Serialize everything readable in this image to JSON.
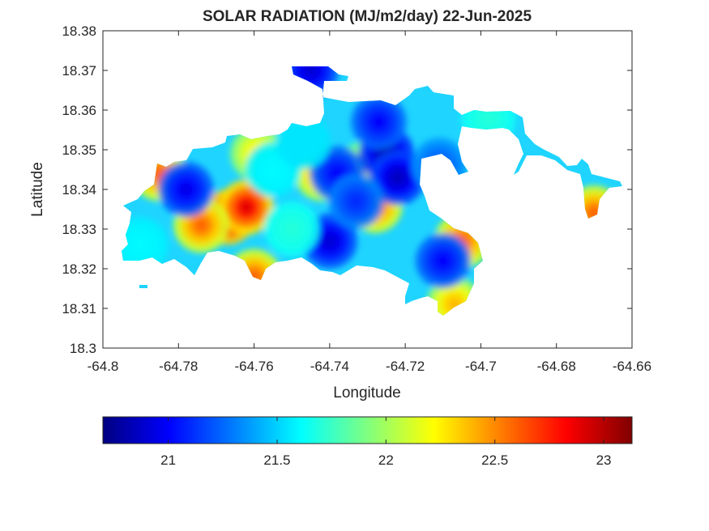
{
  "chart_data": {
    "type": "heatmap",
    "title": "SOLAR RADIATION (MJ/m2/day) 22-Jun-2025",
    "xlabel": "Longitude",
    "ylabel": "Latitude",
    "xlim": [
      -64.8,
      -64.66
    ],
    "ylim": [
      18.3,
      18.38
    ],
    "x_ticks": [
      "-64.8",
      "-64.78",
      "-64.76",
      "-64.74",
      "-64.72",
      "-64.7",
      "-64.68",
      "-64.66"
    ],
    "y_ticks": [
      "18.3",
      "18.31",
      "18.32",
      "18.33",
      "18.34",
      "18.35",
      "18.36",
      "18.37",
      "18.38"
    ],
    "grid": false,
    "colormap": "jet",
    "colorbar": {
      "location": "bottom",
      "range": [
        20.7,
        23.13
      ],
      "ticks": [
        "21",
        "21.5",
        "22",
        "22.5",
        "23"
      ]
    },
    "hotspots": [
      {
        "lon": -64.767,
        "lat": 18.333,
        "value": 23.0
      },
      {
        "lon": -64.762,
        "lat": 18.3355,
        "value": 22.9
      },
      {
        "lon": -64.774,
        "lat": 18.331,
        "value": 22.6
      },
      {
        "lon": -64.759,
        "lat": 18.349,
        "value": 22.3
      },
      {
        "lon": -64.742,
        "lat": 18.344,
        "value": 22.5
      },
      {
        "lon": -64.728,
        "lat": 18.336,
        "value": 22.6
      },
      {
        "lon": -64.731,
        "lat": 18.345,
        "value": 22.2
      },
      {
        "lon": -64.785,
        "lat": 18.344,
        "value": 22.6
      },
      {
        "lon": -64.705,
        "lat": 18.327,
        "value": 22.6
      },
      {
        "lon": -64.707,
        "lat": 18.311,
        "value": 22.4
      },
      {
        "lon": -64.76,
        "lat": 18.318,
        "value": 22.6
      },
      {
        "lon": -64.67,
        "lat": 18.334,
        "value": 22.6
      },
      {
        "lon": -64.725,
        "lat": 18.349,
        "value": 20.8
      },
      {
        "lon": -64.722,
        "lat": 18.343,
        "value": 20.85
      },
      {
        "lon": -64.727,
        "lat": 18.357,
        "value": 21.0
      },
      {
        "lon": -64.738,
        "lat": 18.344,
        "value": 21.0
      },
      {
        "lon": -64.74,
        "lat": 18.327,
        "value": 20.9
      },
      {
        "lon": -64.778,
        "lat": 18.34,
        "value": 20.95
      },
      {
        "lon": -64.71,
        "lat": 18.322,
        "value": 21.0
      },
      {
        "lon": -64.745,
        "lat": 18.37,
        "value": 20.9
      },
      {
        "lon": -64.711,
        "lat": 18.346,
        "value": 21.2
      },
      {
        "lon": -64.733,
        "lat": 18.337,
        "value": 21.1
      },
      {
        "lon": -64.79,
        "lat": 18.326,
        "value": 21.6
      },
      {
        "lon": -64.755,
        "lat": 18.345,
        "value": 21.6
      },
      {
        "lon": -64.698,
        "lat": 18.358,
        "value": 21.7
      },
      {
        "lon": -64.75,
        "lat": 18.33,
        "value": 21.7
      },
      {
        "lon": -64.747,
        "lat": 18.352,
        "value": 21.55
      }
    ]
  }
}
